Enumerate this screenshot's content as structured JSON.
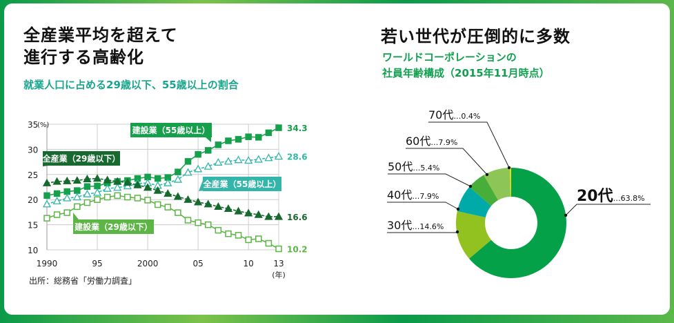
{
  "left": {
    "title_line1": "全産業平均を超えて",
    "title_line2": "進行する高齢化",
    "subtitle": "就業人口に占める29歳以下、55歳以上の割合",
    "source": "出所：総務省「労働力調査」"
  },
  "right": {
    "title": "若い世代が圧倒的に多数",
    "subtitle_line1": "ワールドコーポレーションの",
    "subtitle_line2": "社員年齢構成（2015年11月時点）"
  },
  "chart_data": [
    {
      "type": "line",
      "title": "就業人口に占める29歳以下、55歳以上の割合",
      "ylabel": "(%)",
      "xlabel": "(年)",
      "ylim": [
        10,
        35
      ],
      "yticks": [
        "35",
        "30",
        "25",
        "20",
        "15",
        "10"
      ],
      "xticks": [
        "1990",
        "95",
        "2000",
        "05",
        "10",
        "13"
      ],
      "xticks_values": [
        1990,
        1995,
        2000,
        2005,
        2010,
        2013
      ],
      "x": [
        1990,
        1991,
        1992,
        1993,
        1994,
        1995,
        1996,
        1997,
        1998,
        1999,
        2000,
        2001,
        2002,
        2003,
        2004,
        2005,
        2006,
        2007,
        2008,
        2009,
        2010,
        2011,
        2012,
        2013
      ],
      "series": [
        {
          "name": "建設業（55歳以上）",
          "color": "#16a04c",
          "marker": "square-filled",
          "end_label": "34.3",
          "values": [
            20.8,
            21.2,
            21.6,
            21.8,
            22.6,
            22.7,
            23.3,
            23.6,
            23.8,
            24.2,
            24.5,
            24.2,
            24.4,
            25.5,
            27.6,
            29.0,
            29.8,
            30.9,
            31.7,
            32.0,
            32.5,
            32.4,
            33.3,
            34.3
          ]
        },
        {
          "name": "全産業（55歳以上）",
          "color": "#33b5aa",
          "marker": "triangle-open",
          "end_label": "28.6",
          "values": [
            19.1,
            19.7,
            20.3,
            20.5,
            21.1,
            21.4,
            22.2,
            22.4,
            22.7,
            23.2,
            23.3,
            22.8,
            23.3,
            24.0,
            25.4,
            26.1,
            26.6,
            27.4,
            27.6,
            27.9,
            27.8,
            28.0,
            28.3,
            28.6
          ]
        },
        {
          "name": "全産業（29歳以下）",
          "color": "#17692f",
          "marker": "triangle-filled",
          "end_label": "16.6",
          "values": [
            23.3,
            23.6,
            23.7,
            23.8,
            24.1,
            24.2,
            23.9,
            23.6,
            23.4,
            22.9,
            22.4,
            21.8,
            21.2,
            20.6,
            20.0,
            19.5,
            19.1,
            18.6,
            18.2,
            17.7,
            17.3,
            17.0,
            16.6,
            16.6
          ]
        },
        {
          "name": "建設業（29歳以下）",
          "color": "#5cb545",
          "marker": "square-open",
          "end_label": "10.2",
          "values": [
            16.3,
            17.0,
            17.4,
            18.6,
            19.4,
            20.0,
            20.5,
            20.8,
            20.5,
            20.3,
            19.9,
            19.0,
            18.5,
            17.4,
            15.9,
            15.4,
            15.0,
            13.9,
            13.2,
            12.9,
            12.0,
            12.2,
            11.3,
            10.2
          ]
        }
      ]
    },
    {
      "type": "pie",
      "title": "社員年齢構成（2015年11月時点）",
      "donut": true,
      "slices": [
        {
          "label": "20代",
          "value": 63.8,
          "text": "…63.8%",
          "color": "#05a148"
        },
        {
          "label": "30代",
          "value": 14.6,
          "text": "…14.6%",
          "color": "#92c21f"
        },
        {
          "label": "40代",
          "value": 7.9,
          "text": "…7.9%",
          "color": "#00aaa8"
        },
        {
          "label": "50代",
          "value": 5.4,
          "text": "…5.4%",
          "color": "#47ae3a"
        },
        {
          "label": "60代",
          "value": 7.9,
          "text": "…7.9%",
          "color": "#8dc556"
        },
        {
          "label": "70代",
          "value": 0.4,
          "text": "…0.4%",
          "color": "#e6e000"
        }
      ]
    }
  ]
}
